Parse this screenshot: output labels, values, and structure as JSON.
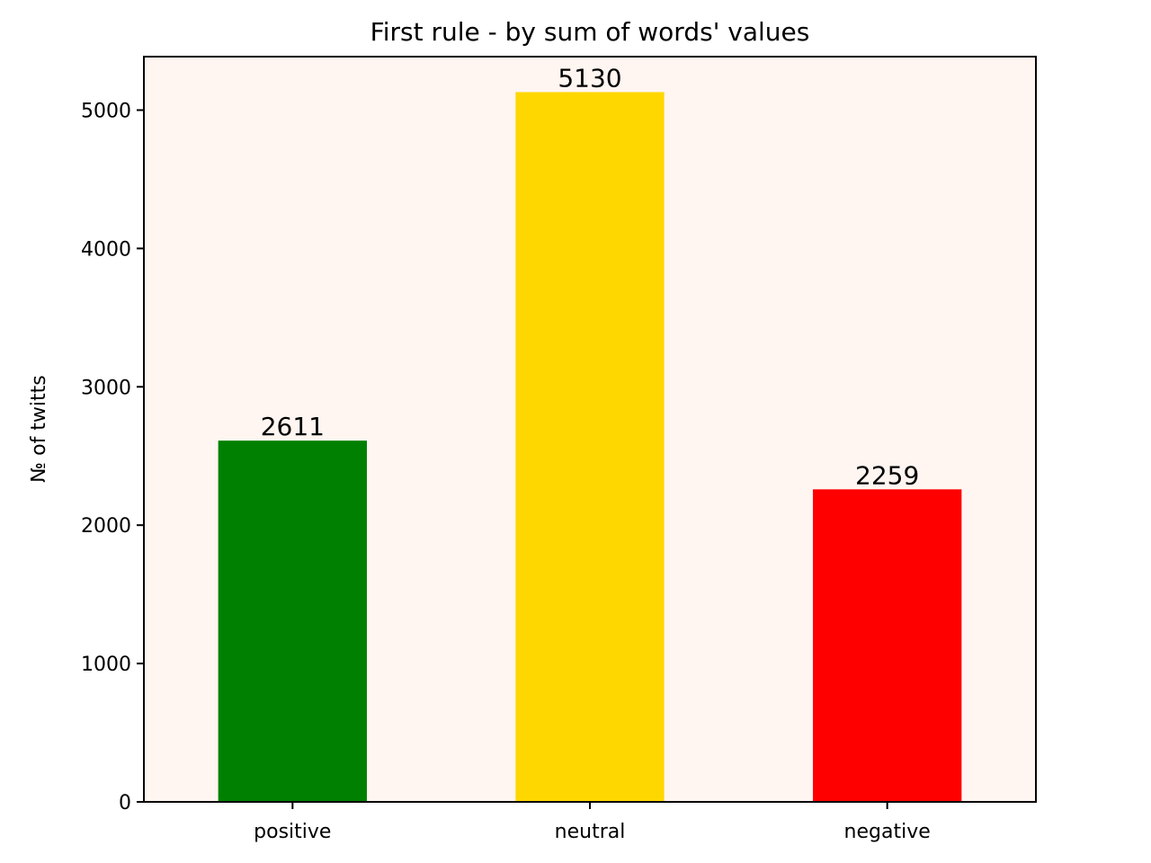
{
  "chart_data": {
    "type": "bar",
    "title": "First rule - by sum of words' values",
    "xlabel": "",
    "ylabel": "№ of twitts",
    "categories": [
      "positive",
      "neutral",
      "negative"
    ],
    "values": [
      2611,
      5130,
      2259
    ],
    "colors": [
      "#008000",
      "#ffd700",
      "#ff0000"
    ],
    "data_labels": [
      "2611",
      "5130",
      "2259"
    ],
    "ylim": [
      0,
      5386.5
    ],
    "yticks": [
      0,
      1000,
      2000,
      3000,
      4000,
      5000
    ],
    "ytick_labels": [
      "0",
      "1000",
      "2000",
      "3000",
      "4000",
      "5000"
    ],
    "grid": false,
    "legend": "none",
    "plot_background": "#fff5f1"
  }
}
